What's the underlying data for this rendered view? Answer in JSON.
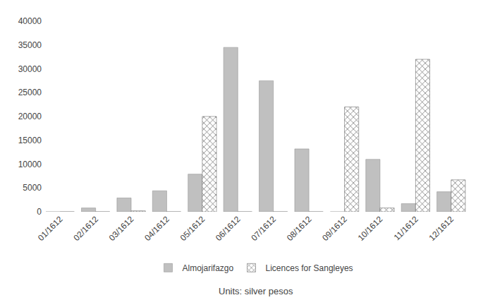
{
  "chart_data": {
    "type": "bar",
    "categories": [
      "01/1612",
      "02/1612",
      "03/1612",
      "04/1612",
      "05/1612",
      "06/1612",
      "07/1612",
      "08/1612",
      "09/1612",
      "10/1612",
      "11/1612",
      "12/1612"
    ],
    "series": [
      {
        "name": "Almojarifazgo",
        "color": "#c0c0c0",
        "values": [
          0,
          800,
          2900,
          4400,
          7900,
          34500,
          27500,
          13200,
          0,
          11000,
          1700,
          4200
        ]
      },
      {
        "name": "Licences for Sangleyes",
        "color": "#ffffff",
        "values": [
          0,
          0,
          200,
          0,
          20000,
          0,
          0,
          0,
          22000,
          800,
          32000,
          6700
        ]
      }
    ],
    "ylim": [
      0,
      40000
    ],
    "yticks": [
      0,
      5000,
      10000,
      15000,
      20000,
      25000,
      30000,
      35000,
      40000
    ],
    "grid": false,
    "legend": "bottom",
    "annotations": [
      "Units: silver pesos"
    ]
  }
}
